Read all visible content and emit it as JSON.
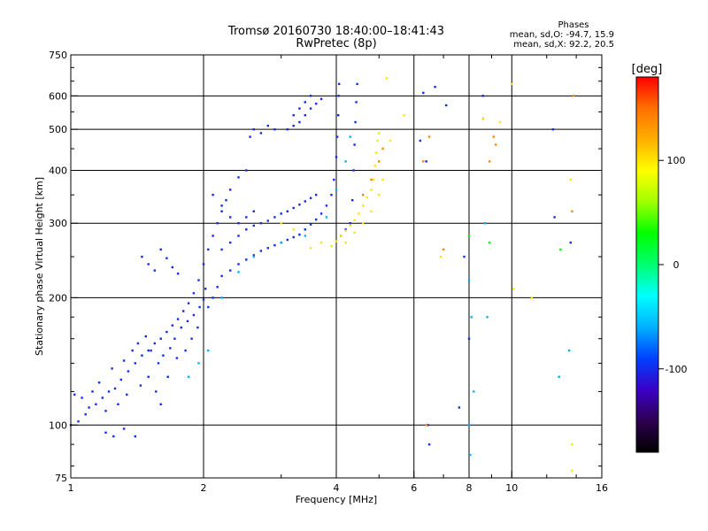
{
  "chart_data": {
    "type": "scatter",
    "title": "Tromsø 20160730 18:40:00–18:41:43",
    "subtitle": "RwPretec (8p)",
    "xlabel": "Frequency [MHz]",
    "ylabel": "Stationary phase Virtual Height [km]",
    "x_scale": "log",
    "y_scale": "log",
    "xlim": [
      1,
      16
    ],
    "ylim": [
      75,
      750
    ],
    "x_ticks": [
      1,
      2,
      4,
      6,
      8,
      10,
      16
    ],
    "x_tick_labels": [
      "1",
      "2",
      "4",
      "6",
      "8",
      "10",
      "16"
    ],
    "x_gridlines": [
      2,
      4,
      6,
      8,
      10
    ],
    "y_ticks": [
      75,
      100,
      200,
      300,
      400,
      500,
      600,
      750
    ],
    "y_tick_labels": [
      "75",
      "100",
      "200",
      "300",
      "400",
      "500",
      "600",
      "750"
    ],
    "y_gridlines": [
      100,
      200,
      300,
      400,
      500,
      600
    ],
    "grid": true,
    "phases": {
      "title": "Phases",
      "o_line": "mean, sd,O: -94.7, 15.9",
      "x_line": "mean, sd,X:  92.2, 20.5"
    },
    "colorbar": {
      "label": "[deg]",
      "range": [
        -180,
        180
      ],
      "ticks": [
        100,
        0,
        -100
      ],
      "tick_labels": [
        "100",
        "0",
        "-100"
      ],
      "colors": [
        "#000000",
        "#2e0050",
        "#3a00c8",
        "#0040ff",
        "#00b0ff",
        "#00ffff",
        "#00ff70",
        "#00ff00",
        "#a0ff00",
        "#ffff00",
        "#ffb000",
        "#ff7000",
        "#ff0000"
      ]
    },
    "series": [
      {
        "phase_deg": -100,
        "points": [
          [
            1.0,
            100
          ],
          [
            1.04,
            102
          ],
          [
            1.08,
            106
          ],
          [
            1.1,
            110
          ],
          [
            1.14,
            112
          ],
          [
            1.18,
            116
          ],
          [
            1.22,
            120
          ],
          [
            1.26,
            122
          ],
          [
            1.3,
            128
          ],
          [
            1.35,
            134
          ],
          [
            1.4,
            140
          ],
          [
            1.45,
            146
          ],
          [
            1.5,
            150
          ],
          [
            1.55,
            156
          ],
          [
            1.6,
            160
          ],
          [
            1.65,
            166
          ],
          [
            1.7,
            172
          ],
          [
            1.75,
            178
          ],
          [
            1.8,
            186
          ],
          [
            1.85,
            194
          ],
          [
            1.9,
            205
          ],
          [
            1.95,
            220
          ],
          [
            2.0,
            240
          ],
          [
            2.05,
            260
          ],
          [
            2.1,
            280
          ],
          [
            2.15,
            300
          ],
          [
            2.2,
            320
          ],
          [
            2.25,
            340
          ],
          [
            2.3,
            360
          ],
          [
            2.4,
            385
          ],
          [
            2.5,
            400
          ],
          [
            1.02,
            118
          ],
          [
            1.06,
            116
          ],
          [
            1.12,
            120
          ],
          [
            1.16,
            126
          ],
          [
            1.24,
            136
          ],
          [
            1.32,
            142
          ],
          [
            1.38,
            150
          ],
          [
            1.42,
            156
          ],
          [
            1.48,
            162
          ],
          [
            1.52,
            150
          ],
          [
            1.58,
            140
          ],
          [
            1.62,
            146
          ],
          [
            1.68,
            152
          ],
          [
            1.72,
            160
          ],
          [
            1.78,
            170
          ],
          [
            1.84,
            176
          ],
          [
            1.9,
            182
          ],
          [
            1.96,
            190
          ],
          [
            2.0,
            198
          ],
          [
            2.02,
            210
          ],
          [
            1.2,
            108
          ],
          [
            1.28,
            112
          ],
          [
            1.34,
            118
          ],
          [
            1.44,
            124
          ],
          [
            1.5,
            130
          ],
          [
            1.56,
            120
          ],
          [
            1.6,
            112
          ],
          [
            1.66,
            130
          ],
          [
            1.74,
            144
          ],
          [
            1.82,
            150
          ],
          [
            1.88,
            160
          ],
          [
            1.94,
            170
          ],
          [
            1.45,
            250
          ],
          [
            1.5,
            240
          ],
          [
            1.55,
            232
          ],
          [
            1.6,
            260
          ],
          [
            1.65,
            248
          ],
          [
            1.7,
            236
          ],
          [
            1.75,
            228
          ],
          [
            1.2,
            96
          ],
          [
            1.25,
            94
          ],
          [
            1.32,
            98
          ],
          [
            1.4,
            94
          ],
          [
            2.05,
            190
          ],
          [
            2.1,
            200
          ],
          [
            2.15,
            212
          ],
          [
            2.2,
            225
          ],
          [
            2.3,
            232
          ],
          [
            2.4,
            240
          ],
          [
            2.5,
            246
          ],
          [
            2.6,
            252
          ],
          [
            2.7,
            258
          ],
          [
            2.8,
            262
          ],
          [
            2.9,
            266
          ],
          [
            3.0,
            270
          ],
          [
            3.1,
            274
          ],
          [
            3.2,
            278
          ],
          [
            3.3,
            282
          ],
          [
            3.4,
            290
          ],
          [
            3.5,
            298
          ],
          [
            3.6,
            306
          ],
          [
            3.7,
            316
          ],
          [
            3.8,
            330
          ],
          [
            3.9,
            350
          ],
          [
            3.95,
            380
          ],
          [
            4.0,
            430
          ],
          [
            4.02,
            480
          ],
          [
            4.04,
            540
          ],
          [
            4.05,
            600
          ],
          [
            4.06,
            640
          ],
          [
            2.2,
            260
          ],
          [
            2.3,
            270
          ],
          [
            2.4,
            280
          ],
          [
            2.5,
            290
          ],
          [
            2.6,
            296
          ],
          [
            2.7,
            300
          ],
          [
            2.8,
            304
          ],
          [
            2.9,
            310
          ],
          [
            3.0,
            316
          ],
          [
            3.1,
            320
          ],
          [
            3.2,
            326
          ],
          [
            3.3,
            332
          ],
          [
            3.4,
            338
          ],
          [
            3.5,
            344
          ],
          [
            3.6,
            350
          ],
          [
            2.1,
            350
          ],
          [
            2.2,
            330
          ],
          [
            2.3,
            310
          ],
          [
            2.4,
            300
          ],
          [
            2.5,
            310
          ],
          [
            2.6,
            320
          ],
          [
            2.55,
            480
          ],
          [
            2.6,
            500
          ],
          [
            2.7,
            490
          ],
          [
            2.8,
            510
          ],
          [
            2.9,
            500
          ],
          [
            3.1,
            500
          ],
          [
            3.2,
            510
          ],
          [
            3.3,
            520
          ],
          [
            3.4,
            540
          ],
          [
            3.5,
            560
          ],
          [
            3.6,
            575
          ],
          [
            3.7,
            590
          ],
          [
            3.2,
            540
          ],
          [
            3.3,
            560
          ],
          [
            3.4,
            580
          ],
          [
            3.5,
            600
          ],
          [
            4.1,
            280
          ],
          [
            4.2,
            290
          ],
          [
            4.3,
            300
          ],
          [
            4.35,
            340
          ],
          [
            4.38,
            400
          ],
          [
            4.4,
            460
          ],
          [
            4.42,
            520
          ],
          [
            4.44,
            580
          ],
          [
            4.46,
            640
          ],
          [
            6.45,
            100
          ],
          [
            6.7,
            630
          ],
          [
            8.6,
            530
          ],
          [
            8.0,
            160
          ],
          [
            7.8,
            250
          ],
          [
            6.4,
            420
          ],
          [
            6.2,
            470
          ],
          [
            12.4,
            500
          ],
          [
            12.5,
            310
          ],
          [
            13.6,
            270
          ],
          [
            7.1,
            570
          ],
          [
            6.3,
            610
          ],
          [
            8.6,
            600
          ],
          [
            6.5,
            90
          ],
          [
            7.6,
            110
          ]
        ]
      },
      {
        "phase_deg": -60,
        "points": [
          [
            1.85,
            130
          ],
          [
            1.95,
            140
          ],
          [
            2.05,
            150
          ],
          [
            2.2,
            200
          ],
          [
            2.4,
            230
          ],
          [
            2.6,
            250
          ],
          [
            3.0,
            270
          ],
          [
            3.4,
            280
          ],
          [
            3.8,
            310
          ],
          [
            4.0,
            360
          ],
          [
            4.2,
            420
          ],
          [
            4.3,
            480
          ],
          [
            8.0,
            220
          ],
          [
            8.1,
            180
          ],
          [
            8.2,
            120
          ],
          [
            8.0,
            100
          ],
          [
            8.05,
            85
          ],
          [
            8.7,
            300
          ],
          [
            8.8,
            180
          ],
          [
            13.5,
            150
          ],
          [
            12.8,
            130
          ]
        ]
      },
      {
        "phase_deg": 30,
        "points": [
          [
            8.9,
            270
          ],
          [
            8.0,
            280
          ],
          [
            12.9,
            260
          ]
        ]
      },
      {
        "phase_deg": 100,
        "points": [
          [
            3.9,
            265
          ],
          [
            4.0,
            272
          ],
          [
            4.1,
            280
          ],
          [
            4.2,
            288
          ],
          [
            4.3,
            296
          ],
          [
            4.4,
            305
          ],
          [
            4.5,
            316
          ],
          [
            4.6,
            330
          ],
          [
            4.7,
            345
          ],
          [
            4.8,
            360
          ],
          [
            4.85,
            380
          ],
          [
            4.9,
            410
          ],
          [
            4.93,
            440
          ],
          [
            4.96,
            470
          ],
          [
            5.0,
            490
          ],
          [
            4.2,
            270
          ],
          [
            4.4,
            285
          ],
          [
            4.6,
            300
          ],
          [
            4.8,
            320
          ],
          [
            5.0,
            350
          ],
          [
            5.1,
            380
          ],
          [
            3.0,
            300
          ],
          [
            3.2,
            290
          ],
          [
            3.5,
            262
          ],
          [
            3.7,
            270
          ],
          [
            5.2,
            660
          ],
          [
            5.7,
            540
          ],
          [
            6.9,
            250
          ],
          [
            10.1,
            210
          ],
          [
            11.1,
            200
          ],
          [
            8.6,
            530
          ],
          [
            9.4,
            520
          ],
          [
            10.0,
            640
          ],
          [
            13.6,
            380
          ],
          [
            13.7,
            90
          ],
          [
            13.7,
            78
          ],
          [
            5.3,
            470
          ],
          [
            5.0,
            420
          ]
        ]
      },
      {
        "phase_deg": 140,
        "points": [
          [
            4.6,
            350
          ],
          [
            4.8,
            380
          ],
          [
            5.0,
            420
          ],
          [
            5.1,
            450
          ],
          [
            6.3,
            420
          ],
          [
            6.5,
            480
          ],
          [
            7.0,
            260
          ],
          [
            9.1,
            480
          ],
          [
            9.2,
            460
          ],
          [
            8.9,
            420
          ],
          [
            13.8,
            600
          ],
          [
            13.7,
            320
          ],
          [
            6.4,
            100
          ]
        ]
      }
    ]
  }
}
